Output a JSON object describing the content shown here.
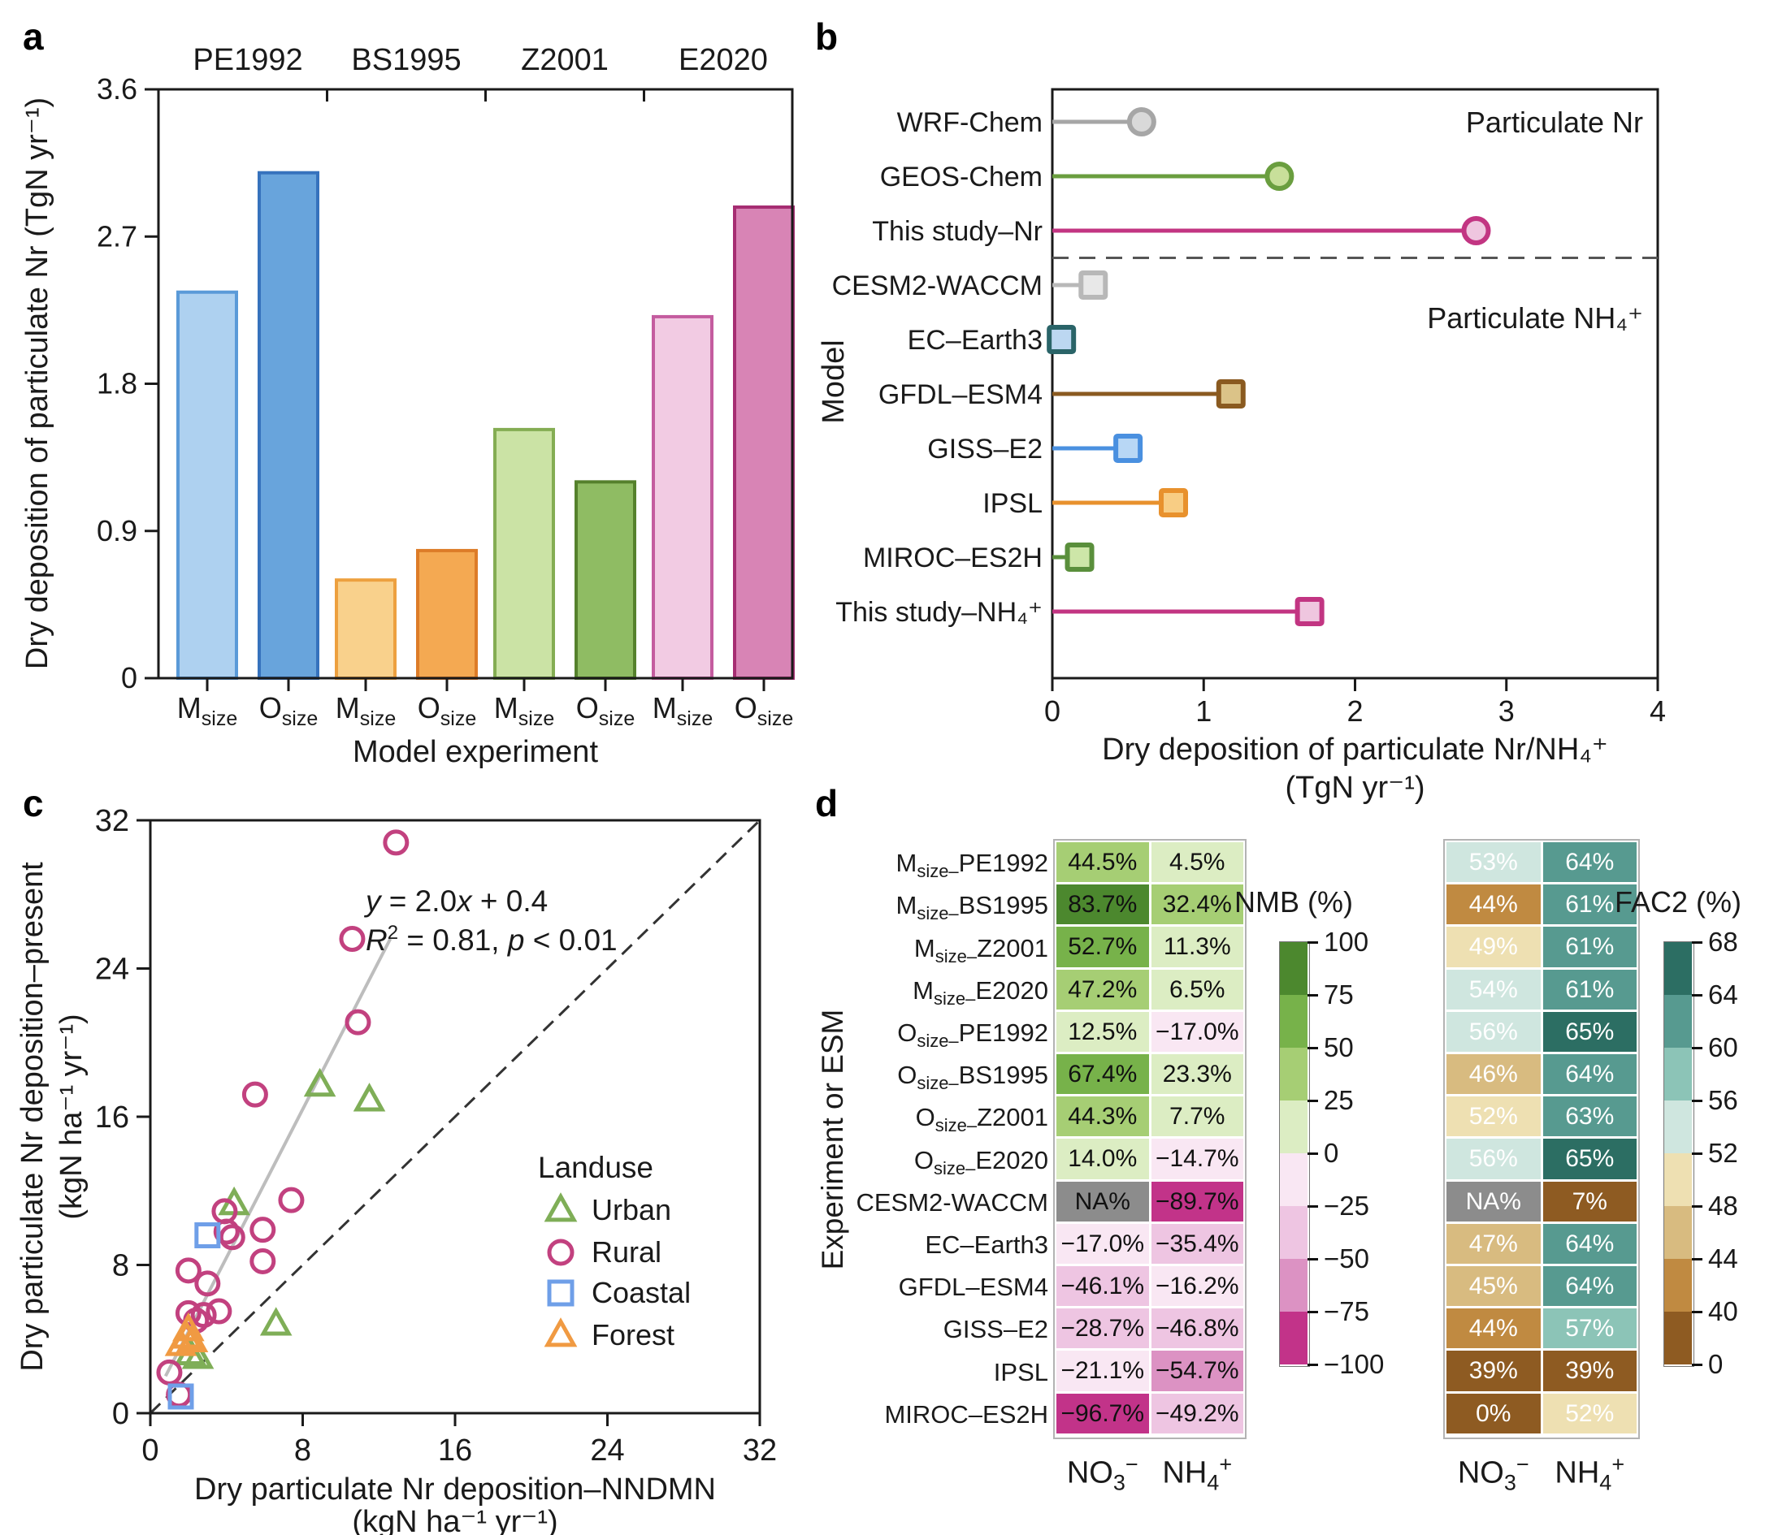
{
  "chart_data": [
    {
      "id": "panel-a",
      "panel_label": "a",
      "type": "bar",
      "ylabel": "Dry deposition of particulate Nr (TgN yr⁻¹)",
      "xlabel": "Model experiment",
      "ylim": [
        0,
        3.6
      ],
      "yticks": [
        0,
        0.9,
        1.8,
        2.7,
        3.6
      ],
      "ytick_labels": [
        "0",
        "0.9",
        "1.8",
        "2.7",
        "3.6"
      ],
      "bar_subscript": "size",
      "groups": [
        {
          "name": "PE1992",
          "bars": [
            {
              "cat": "M",
              "value": 2.36,
              "fill": "#aed1f0",
              "stroke": "#5a9ad8"
            },
            {
              "cat": "O",
              "value": 3.09,
              "fill": "#68a4dc",
              "stroke": "#3672bd"
            }
          ]
        },
        {
          "name": "BS1995",
          "bars": [
            {
              "cat": "M",
              "value": 0.6,
              "fill": "#f9d18c",
              "stroke": "#eda03f"
            },
            {
              "cat": "O",
              "value": 0.78,
              "fill": "#f4a952",
              "stroke": "#dd7c28"
            }
          ]
        },
        {
          "name": "Z2001",
          "bars": [
            {
              "cat": "M",
              "value": 1.52,
              "fill": "#cbe3a5",
              "stroke": "#84ad53"
            },
            {
              "cat": "O",
              "value": 1.2,
              "fill": "#8fbc63",
              "stroke": "#55812c"
            }
          ]
        },
        {
          "name": "E2020",
          "bars": [
            {
              "cat": "M",
              "value": 2.21,
              "fill": "#f2cbe3",
              "stroke": "#c45c9f"
            },
            {
              "cat": "O",
              "value": 2.88,
              "fill": "#d884b5",
              "stroke": "#a62d72"
            }
          ]
        }
      ]
    },
    {
      "id": "panel-b",
      "panel_label": "b",
      "type": "lollipop",
      "ylabel": "Model",
      "xlabel_line1": "Dry deposition of particulate Nr/NH₄⁺",
      "xlabel_line2": "(TgN yr⁻¹)",
      "xlim": [
        0,
        4
      ],
      "xticks": [
        0,
        1,
        2,
        3,
        4
      ],
      "annotation_top": "Particulate Nr",
      "annotation_bottom": "Particulate NH₄⁺",
      "separator_after": "This study–Nr",
      "items": [
        {
          "label": "WRF-Chem",
          "value": 0.59,
          "marker": "circle",
          "stroke": "#a6a6a6",
          "fill": "#d9d9d9"
        },
        {
          "label": "GEOS-Chem",
          "value": 1.5,
          "marker": "circle",
          "stroke": "#6a9e3f",
          "fill": "#c8df9a"
        },
        {
          "label": "This study–Nr",
          "value": 2.8,
          "marker": "circle",
          "stroke": "#c23582",
          "fill": "#efc6df"
        },
        {
          "label": "CESM2-WACCM",
          "value": 0.27,
          "marker": "square",
          "stroke": "#b8b8b8",
          "fill": "#e8e8e8"
        },
        {
          "label": "EC–Earth3",
          "value": 0.06,
          "marker": "square",
          "stroke": "#2a6468",
          "fill": "#bcd7f1"
        },
        {
          "label": "GFDL–ESM4",
          "value": 1.18,
          "marker": "square",
          "stroke": "#8a5a20",
          "fill": "#dbc388"
        },
        {
          "label": "GISS–E2",
          "value": 0.5,
          "marker": "square",
          "stroke": "#4a90e0",
          "fill": "#b8d7f5"
        },
        {
          "label": "IPSL",
          "value": 0.8,
          "marker": "square",
          "stroke": "#e8912d",
          "fill": "#f8cd84"
        },
        {
          "label": "MIROC–ES2H",
          "value": 0.18,
          "marker": "square",
          "stroke": "#5a8f3c",
          "fill": "#cde6a8"
        },
        {
          "label": "This study–NH₄⁺",
          "value": 1.7,
          "marker": "square",
          "stroke": "#c23582",
          "fill": "#efc6df"
        }
      ]
    },
    {
      "id": "panel-c",
      "panel_label": "c",
      "type": "scatter",
      "xlabel_line1": "Dry particulate Nr deposition–NNDMN",
      "xlabel_line2": "(kgN ha⁻¹ yr⁻¹)",
      "ylabel_line1": "Dry particulate Nr deposition–present",
      "ylabel_line2": "(kgN ha⁻¹ yr⁻¹)",
      "xlim": [
        0,
        32
      ],
      "ylim": [
        0,
        32
      ],
      "xticks": [
        0,
        8,
        16,
        24,
        32
      ],
      "yticks": [
        0,
        8,
        16,
        24,
        32
      ],
      "annotation": {
        "line1": [
          {
            "t": "y",
            "i": 1
          },
          {
            "t": " = 2.0"
          },
          {
            "t": "x",
            "i": 1
          },
          {
            "t": " + 0.4"
          }
        ],
        "line2": [
          {
            "t": "R",
            "i": 1
          },
          {
            "t": "2",
            "sup": 1
          },
          {
            "t": " = 0.81, "
          },
          {
            "t": "p",
            "i": 1
          },
          {
            "t": " < 0.01"
          }
        ]
      },
      "fit_line": {
        "slope": 2.0,
        "intercept": 0.4,
        "x_range": [
          0.8,
          12.6
        ],
        "color": "#bdbdbd"
      },
      "identity_line": {
        "color": "#333333"
      },
      "legend_title": "Landuse",
      "series": [
        {
          "name": "Urban",
          "marker": "triangle",
          "color": "#7fae57",
          "points": [
            [
              8.9,
              17.7
            ],
            [
              11.5,
              16.9
            ],
            [
              4.4,
              11.3
            ],
            [
              6.6,
              4.8
            ],
            [
              2.1,
              3.2
            ],
            [
              2.5,
              3.0
            ]
          ]
        },
        {
          "name": "Rural",
          "marker": "circle",
          "color": "#c2417f",
          "points": [
            [
              12.9,
              30.8
            ],
            [
              10.6,
              25.6
            ],
            [
              10.9,
              21.1
            ],
            [
              5.5,
              17.2
            ],
            [
              7.4,
              11.5
            ],
            [
              3.9,
              10.9
            ],
            [
              5.9,
              9.9
            ],
            [
              4.0,
              9.8
            ],
            [
              4.3,
              9.5
            ],
            [
              5.9,
              8.2
            ],
            [
              2.0,
              7.7
            ],
            [
              3.0,
              7.0
            ],
            [
              2.0,
              5.4
            ],
            [
              2.8,
              5.3
            ],
            [
              3.6,
              5.5
            ],
            [
              2.4,
              5.0
            ],
            [
              1.0,
              2.2
            ],
            [
              1.5,
              1.0
            ]
          ]
        },
        {
          "name": "Coastal",
          "marker": "square",
          "color": "#6f9fe8",
          "points": [
            [
              3.0,
              9.6
            ],
            [
              1.6,
              0.9
            ]
          ]
        },
        {
          "name": "Forest",
          "marker": "triangle",
          "color": "#f09a42",
          "points": [
            [
              1.6,
              3.7
            ],
            [
              1.9,
              4.1
            ],
            [
              2.2,
              3.9
            ],
            [
              2.0,
              4.5
            ]
          ]
        }
      ]
    },
    {
      "id": "panel-d-nmb",
      "panel_label": "d",
      "type": "heatmap",
      "ylabel": "Experiment or ESM",
      "columns": [
        {
          "base": "NO",
          "sub": "3",
          "sup": "−"
        },
        {
          "base": "NH",
          "sub": "4",
          "sup": "+"
        }
      ],
      "rows": [
        {
          "pre": "M",
          "sub": "size–",
          "post": "PE1992"
        },
        {
          "pre": "M",
          "sub": "size–",
          "post": "BS1995"
        },
        {
          "pre": "M",
          "sub": "size–",
          "post": "Z2001"
        },
        {
          "pre": "M",
          "sub": "size–",
          "post": "E2020"
        },
        {
          "pre": "O",
          "sub": "size–",
          "post": "PE1992"
        },
        {
          "pre": "O",
          "sub": "size–",
          "post": "BS1995"
        },
        {
          "pre": "O",
          "sub": "size–",
          "post": "Z2001"
        },
        {
          "pre": "O",
          "sub": "size–",
          "post": "E2020"
        },
        {
          "pre": "CESM2-WACCM",
          "sub": "",
          "post": ""
        },
        {
          "pre": "EC–Earth3",
          "sub": "",
          "post": ""
        },
        {
          "pre": "GFDL–ESM4",
          "sub": "",
          "post": ""
        },
        {
          "pre": "GISS–E2",
          "sub": "",
          "post": ""
        },
        {
          "pre": "IPSL",
          "sub": "",
          "post": ""
        },
        {
          "pre": "MIROC–ES2H",
          "sub": "",
          "post": ""
        }
      ],
      "cell_labels": [
        [
          "44.5%",
          "4.5%"
        ],
        [
          "83.7%",
          "32.4%"
        ],
        [
          "52.7%",
          "11.3%"
        ],
        [
          "47.2%",
          "6.5%"
        ],
        [
          "12.5%",
          "−17.0%"
        ],
        [
          "67.4%",
          "23.3%"
        ],
        [
          "44.3%",
          "7.7%"
        ],
        [
          "14.0%",
          "−14.7%"
        ],
        [
          "NA%",
          "−89.7%"
        ],
        [
          "−17.0%",
          "−35.4%"
        ],
        [
          "−46.1%",
          "−16.2%"
        ],
        [
          "−28.7%",
          "−46.8%"
        ],
        [
          "−21.1%",
          "−54.7%"
        ],
        [
          "−96.7%",
          "−49.2%"
        ]
      ],
      "cell_values": [
        [
          44.5,
          4.5
        ],
        [
          83.7,
          32.4
        ],
        [
          52.7,
          11.3
        ],
        [
          47.2,
          6.5
        ],
        [
          12.5,
          -17.0
        ],
        [
          67.4,
          23.3
        ],
        [
          44.3,
          7.7
        ],
        [
          14.0,
          -14.7
        ],
        [
          null,
          -89.7
        ],
        [
          -17.0,
          -35.4
        ],
        [
          -46.1,
          -16.2
        ],
        [
          -28.7,
          -46.8
        ],
        [
          -21.1,
          -54.7
        ],
        [
          -96.7,
          -49.2
        ]
      ],
      "colorbar": {
        "title": "NMB (%)",
        "tick_labels": [
          "100",
          "75",
          "50",
          "25",
          "0",
          "−25",
          "−50",
          "−75",
          "−100"
        ],
        "bin_thresholds": [
          75,
          50,
          25,
          0,
          -25,
          -50,
          -75
        ],
        "colors": [
          "#4c882e",
          "#77b24a",
          "#a6ce74",
          "#dcedc3",
          "#f9e7f3",
          "#eec5e2",
          "#dc92c3",
          "#c23389"
        ]
      },
      "na_color": "#8c8c8c",
      "text_color": "#111111"
    },
    {
      "id": "panel-d-fac2",
      "type": "heatmap",
      "columns": [
        {
          "base": "NO",
          "sub": "3",
          "sup": "−"
        },
        {
          "base": "NH",
          "sub": "4",
          "sup": "+"
        }
      ],
      "cell_labels": [
        [
          "53%",
          "64%"
        ],
        [
          "44%",
          "61%"
        ],
        [
          "49%",
          "61%"
        ],
        [
          "54%",
          "61%"
        ],
        [
          "56%",
          "65%"
        ],
        [
          "46%",
          "64%"
        ],
        [
          "52%",
          "63%"
        ],
        [
          "56%",
          "65%"
        ],
        [
          "NA%",
          "7%"
        ],
        [
          "47%",
          "64%"
        ],
        [
          "45%",
          "64%"
        ],
        [
          "44%",
          "57%"
        ],
        [
          "39%",
          "39%"
        ],
        [
          "0%",
          "52%"
        ]
      ],
      "cell_values": [
        [
          53,
          64
        ],
        [
          44,
          61
        ],
        [
          49,
          61
        ],
        [
          54,
          61
        ],
        [
          56,
          65
        ],
        [
          46,
          64
        ],
        [
          52,
          63
        ],
        [
          56,
          65
        ],
        [
          null,
          7
        ],
        [
          47,
          64
        ],
        [
          45,
          64
        ],
        [
          44,
          57
        ],
        [
          39,
          39
        ],
        [
          0,
          52
        ]
      ],
      "colorbar": {
        "title": "FAC2 (%)",
        "tick_labels": [
          "68",
          "64",
          "60",
          "56",
          "52",
          "48",
          "44",
          "40",
          "0"
        ],
        "bin_thresholds": [
          64,
          60,
          56,
          52,
          48,
          44,
          40
        ],
        "colors": [
          "#2c6e63",
          "#579a90",
          "#8cc4b7",
          "#cfe6df",
          "#eee0b2",
          "#d8bb80",
          "#c08a41",
          "#8e5b22"
        ]
      },
      "na_color": "#8c8c8c",
      "text_color": "#ffffff"
    }
  ]
}
